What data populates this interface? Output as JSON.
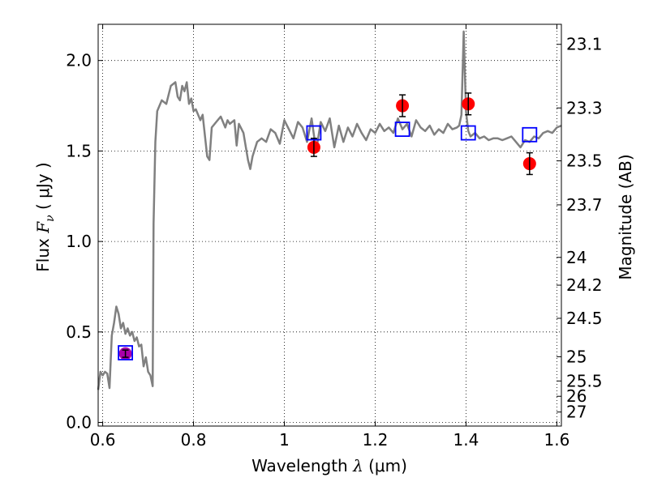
{
  "chart_data": {
    "type": "line",
    "title": "",
    "xlabel": {
      "prefix": "Wavelength  ",
      "symbol": "λ",
      "unit": " (μm)"
    },
    "ylabel": {
      "prefix": "Flux  ",
      "symbol": "F",
      "subscript": "ν",
      "unit": "  ( μJy )"
    },
    "y2label": "Magnitude (AB)",
    "xlim": [
      0.59,
      1.61
    ],
    "ylim": [
      -0.02,
      2.2
    ],
    "grid": true,
    "x_ticks": [
      {
        "value": 0.6,
        "label": "0.6"
      },
      {
        "value": 0.8,
        "label": "0.8"
      },
      {
        "value": 1.0,
        "label": "1"
      },
      {
        "value": 1.2,
        "label": "1.2"
      },
      {
        "value": 1.4,
        "label": "1.4"
      },
      {
        "value": 1.6,
        "label": "1.6"
      }
    ],
    "y_ticks": [
      {
        "value": 0.0,
        "label": "0.0"
      },
      {
        "value": 0.5,
        "label": "0.5"
      },
      {
        "value": 1.0,
        "label": "1.0"
      },
      {
        "value": 1.5,
        "label": "1.5"
      },
      {
        "value": 2.0,
        "label": "2.0"
      }
    ],
    "y2_ticks": [
      {
        "value": 23.1,
        "label": "23.1"
      },
      {
        "value": 23.3,
        "label": "23.3"
      },
      {
        "value": 23.5,
        "label": "23.5"
      },
      {
        "value": 23.7,
        "label": "23.7"
      },
      {
        "value": 24.0,
        "label": "24"
      },
      {
        "value": 24.2,
        "label": "24.2"
      },
      {
        "value": 24.5,
        "label": "24.5"
      },
      {
        "value": 25.0,
        "label": "25"
      },
      {
        "value": 25.5,
        "label": "25.5"
      },
      {
        "value": 26.0,
        "label": "26"
      },
      {
        "value": 27.0,
        "label": "27"
      }
    ],
    "template_spectrum": {
      "color": "#808080",
      "x": [
        0.59,
        0.595,
        0.6,
        0.605,
        0.61,
        0.615,
        0.62,
        0.625,
        0.63,
        0.635,
        0.64,
        0.645,
        0.65,
        0.655,
        0.66,
        0.665,
        0.67,
        0.675,
        0.68,
        0.685,
        0.69,
        0.695,
        0.7,
        0.705,
        0.71,
        0.712,
        0.716,
        0.72,
        0.73,
        0.74,
        0.75,
        0.76,
        0.765,
        0.77,
        0.775,
        0.78,
        0.785,
        0.79,
        0.795,
        0.8,
        0.805,
        0.81,
        0.815,
        0.82,
        0.83,
        0.835,
        0.84,
        0.85,
        0.86,
        0.865,
        0.87,
        0.875,
        0.88,
        0.89,
        0.895,
        0.9,
        0.91,
        0.92,
        0.925,
        0.93,
        0.94,
        0.95,
        0.96,
        0.97,
        0.98,
        0.99,
        1.0,
        1.01,
        1.02,
        1.03,
        1.04,
        1.05,
        1.06,
        1.07,
        1.08,
        1.09,
        1.1,
        1.11,
        1.12,
        1.13,
        1.14,
        1.15,
        1.16,
        1.17,
        1.18,
        1.19,
        1.2,
        1.21,
        1.22,
        1.23,
        1.24,
        1.25,
        1.26,
        1.27,
        1.28,
        1.29,
        1.3,
        1.31,
        1.32,
        1.33,
        1.34,
        1.35,
        1.36,
        1.37,
        1.38,
        1.385,
        1.39,
        1.395,
        1.4,
        1.405,
        1.41,
        1.42,
        1.43,
        1.44,
        1.45,
        1.46,
        1.47,
        1.48,
        1.49,
        1.5,
        1.51,
        1.52,
        1.53,
        1.54,
        1.55,
        1.56,
        1.57,
        1.58,
        1.59,
        1.6,
        1.61
      ],
      "y": [
        0.18,
        0.28,
        0.26,
        0.28,
        0.27,
        0.19,
        0.48,
        0.55,
        0.64,
        0.6,
        0.52,
        0.55,
        0.49,
        0.52,
        0.48,
        0.5,
        0.45,
        0.47,
        0.42,
        0.43,
        0.31,
        0.36,
        0.28,
        0.26,
        0.2,
        1.1,
        1.55,
        1.72,
        1.78,
        1.76,
        1.86,
        1.88,
        1.8,
        1.78,
        1.86,
        1.83,
        1.88,
        1.76,
        1.79,
        1.72,
        1.73,
        1.7,
        1.67,
        1.7,
        1.47,
        1.45,
        1.63,
        1.66,
        1.69,
        1.66,
        1.63,
        1.67,
        1.65,
        1.67,
        1.53,
        1.65,
        1.6,
        1.45,
        1.4,
        1.47,
        1.55,
        1.57,
        1.55,
        1.62,
        1.6,
        1.54,
        1.67,
        1.62,
        1.57,
        1.66,
        1.63,
        1.55,
        1.68,
        1.5,
        1.66,
        1.61,
        1.68,
        1.52,
        1.64,
        1.55,
        1.63,
        1.58,
        1.65,
        1.6,
        1.56,
        1.62,
        1.6,
        1.65,
        1.61,
        1.63,
        1.6,
        1.68,
        1.62,
        1.65,
        1.58,
        1.67,
        1.63,
        1.61,
        1.64,
        1.59,
        1.62,
        1.6,
        1.65,
        1.62,
        1.63,
        1.64,
        1.7,
        2.16,
        1.72,
        1.61,
        1.58,
        1.6,
        1.57,
        1.58,
        1.56,
        1.57,
        1.57,
        1.56,
        1.57,
        1.58,
        1.55,
        1.52,
        1.56,
        1.55,
        1.58,
        1.57,
        1.6,
        1.61,
        1.6,
        1.63,
        1.64
      ]
    },
    "series": [
      {
        "marker": "circle",
        "color": "#ff0000",
        "points": [
          {
            "x": 1.065,
            "y": 1.52,
            "err": 0.05
          },
          {
            "x": 1.26,
            "y": 1.75,
            "err": 0.06
          },
          {
            "x": 1.405,
            "y": 1.76,
            "err": 0.06
          },
          {
            "x": 1.54,
            "y": 1.43,
            "err": 0.06
          }
        ]
      },
      {
        "marker": "circle",
        "color": "#aa00aa",
        "points": [
          {
            "x": 0.65,
            "y": 0.38,
            "err": 0.02
          }
        ]
      },
      {
        "marker": "square-open",
        "color": "#0000ff",
        "points": [
          {
            "x": 0.65,
            "y": 0.385
          },
          {
            "x": 1.065,
            "y": 1.6
          },
          {
            "x": 1.26,
            "y": 1.62
          },
          {
            "x": 1.405,
            "y": 1.6
          },
          {
            "x": 1.54,
            "y": 1.59
          }
        ]
      }
    ]
  }
}
